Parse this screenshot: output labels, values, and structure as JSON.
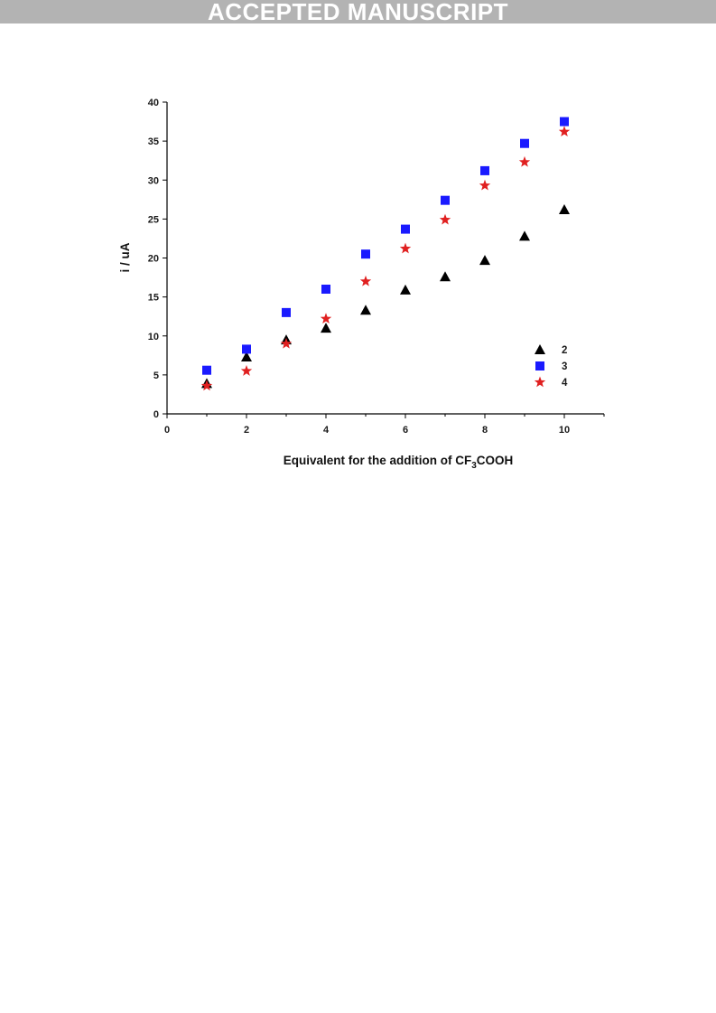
{
  "banner": {
    "text": "ACCEPTED MANUSCRIPT"
  },
  "chart_data": {
    "type": "scatter",
    "title": "",
    "xlabel_main": "Equivalent for the addition of CF",
    "xlabel_sub": "3",
    "xlabel_tail": "COOH",
    "ylabel": "i / uA",
    "xlim": [
      0,
      11
    ],
    "ylim": [
      0,
      40
    ],
    "xticks": [
      0,
      2,
      4,
      6,
      8,
      10
    ],
    "yticks": [
      0,
      5,
      10,
      15,
      20,
      25,
      30,
      35,
      40
    ],
    "grid": false,
    "legend_position": "lower-right",
    "series": [
      {
        "name": "2",
        "marker": "triangle",
        "color": "#000000",
        "x": [
          1,
          2,
          3,
          4,
          5,
          6,
          7,
          8,
          9,
          10
        ],
        "y": [
          3.9,
          7.3,
          9.5,
          11.0,
          13.3,
          15.9,
          17.6,
          19.7,
          22.8,
          26.2
        ]
      },
      {
        "name": "3",
        "marker": "square",
        "color": "#1a1aff",
        "x": [
          1,
          2,
          3,
          4,
          5,
          6,
          7,
          8,
          9,
          10
        ],
        "y": [
          5.6,
          8.3,
          13.0,
          16.0,
          20.5,
          23.7,
          27.4,
          31.2,
          34.7,
          37.5
        ]
      },
      {
        "name": "4",
        "marker": "star",
        "color": "#e02020",
        "x": [
          1,
          2,
          3,
          4,
          5,
          6,
          7,
          8,
          9,
          10
        ],
        "y": [
          3.6,
          5.5,
          9.0,
          12.2,
          17.0,
          21.2,
          24.9,
          29.3,
          32.3,
          36.2
        ]
      }
    ]
  }
}
